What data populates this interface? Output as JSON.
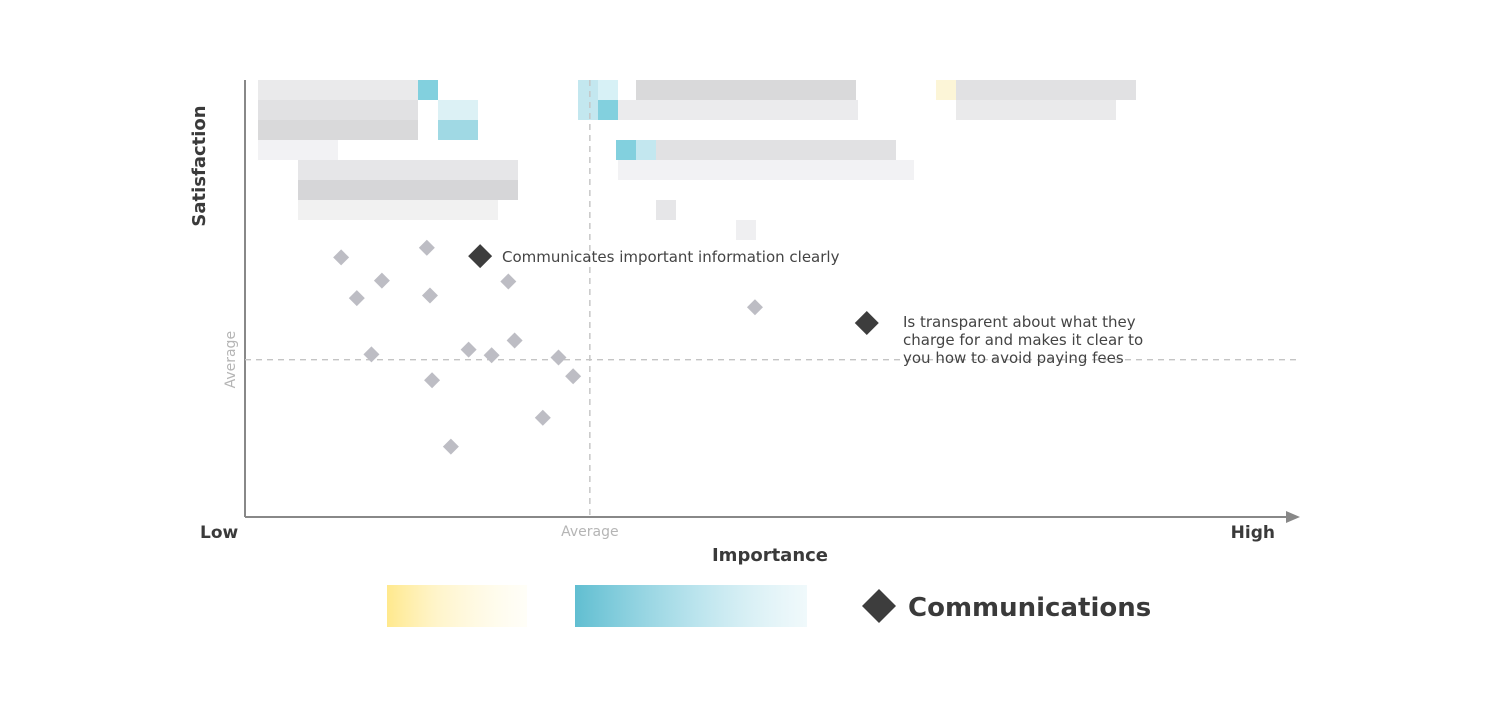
{
  "chart_data": {
    "type": "scatter",
    "xlabel": "Importance",
    "ylabel": "Satisfaction",
    "x_low_label": "Low",
    "x_high_label": "High",
    "x_avg_label": "Average",
    "y_avg_label": "Average",
    "x_average": 0.33,
    "y_average": 0.36,
    "xlim": [
      0,
      1
    ],
    "ylim": [
      0,
      1
    ],
    "grid": false,
    "legend_position": "bottom",
    "colors": {
      "highlight": "#3d3d3d",
      "other": "#bdbdc4",
      "axis": "#888888",
      "dashed": "#c4c4c4"
    },
    "series": [
      {
        "name": "Communications",
        "marker": "diamond",
        "color": "#3d3d3d",
        "points": [
          {
            "x": 0.225,
            "y": 0.597,
            "label": "Communicates important information clearly"
          },
          {
            "x": 0.595,
            "y": 0.444,
            "label": "Is transparent about what they charge for and makes it clear to you how to avoid paying fees"
          }
        ]
      },
      {
        "marker": "diamond",
        "color": "#bdbdc4",
        "points": [
          {
            "x": 0.092,
            "y": 0.594
          },
          {
            "x": 0.174,
            "y": 0.616
          },
          {
            "x": 0.131,
            "y": 0.541
          },
          {
            "x": 0.107,
            "y": 0.501
          },
          {
            "x": 0.177,
            "y": 0.507
          },
          {
            "x": 0.252,
            "y": 0.539
          },
          {
            "x": 0.488,
            "y": 0.48
          },
          {
            "x": 0.121,
            "y": 0.372
          },
          {
            "x": 0.214,
            "y": 0.383
          },
          {
            "x": 0.236,
            "y": 0.37
          },
          {
            "x": 0.258,
            "y": 0.404
          },
          {
            "x": 0.3,
            "y": 0.365
          },
          {
            "x": 0.179,
            "y": 0.313
          },
          {
            "x": 0.314,
            "y": 0.322
          },
          {
            "x": 0.285,
            "y": 0.227
          },
          {
            "x": 0.197,
            "y": 0.161
          }
        ]
      }
    ]
  },
  "legend": {
    "items": [
      {
        "label": "Communications",
        "marker": "diamond",
        "color": "#3d3d3d"
      }
    ]
  }
}
